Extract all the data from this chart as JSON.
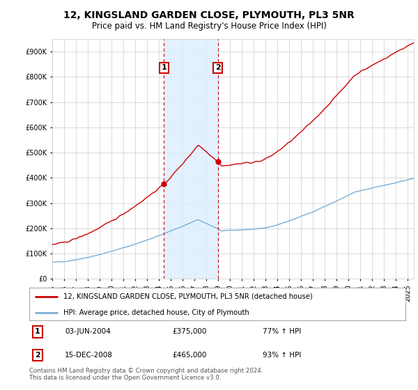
{
  "title": "12, KINGSLAND GARDEN CLOSE, PLYMOUTH, PL3 5NR",
  "subtitle": "Price paid vs. HM Land Registry's House Price Index (HPI)",
  "ylabel_ticks": [
    "£0",
    "£100K",
    "£200K",
    "£300K",
    "£400K",
    "£500K",
    "£600K",
    "£700K",
    "£800K",
    "£900K"
  ],
  "ytick_values": [
    0,
    100000,
    200000,
    300000,
    400000,
    500000,
    600000,
    700000,
    800000,
    900000
  ],
  "ylim": [
    0,
    950000
  ],
  "xlim_start": 1995.0,
  "xlim_end": 2025.5,
  "sale1_date": 2004.42,
  "sale1_price": 375000,
  "sale2_date": 2008.96,
  "sale2_price": 465000,
  "legend_property": "12, KINGSLAND GARDEN CLOSE, PLYMOUTH, PL3 5NR (detached house)",
  "legend_hpi": "HPI: Average price, detached house, City of Plymouth",
  "footer": "Contains HM Land Registry data © Crown copyright and database right 2024.\nThis data is licensed under the Open Government Licence v3.0.",
  "property_color": "#cc0000",
  "hpi_color": "#7aaed6",
  "shade_color": "#ddeeff",
  "vline_color": "#cc0000",
  "background_color": "#ffffff",
  "grid_color": "#cccccc",
  "sale1_row": [
    "1",
    "03-JUN-2004",
    "£375,000",
    "77% ↑ HPI"
  ],
  "sale2_row": [
    "2",
    "15-DEC-2008",
    "£465,000",
    "93% ↑ HPI"
  ]
}
